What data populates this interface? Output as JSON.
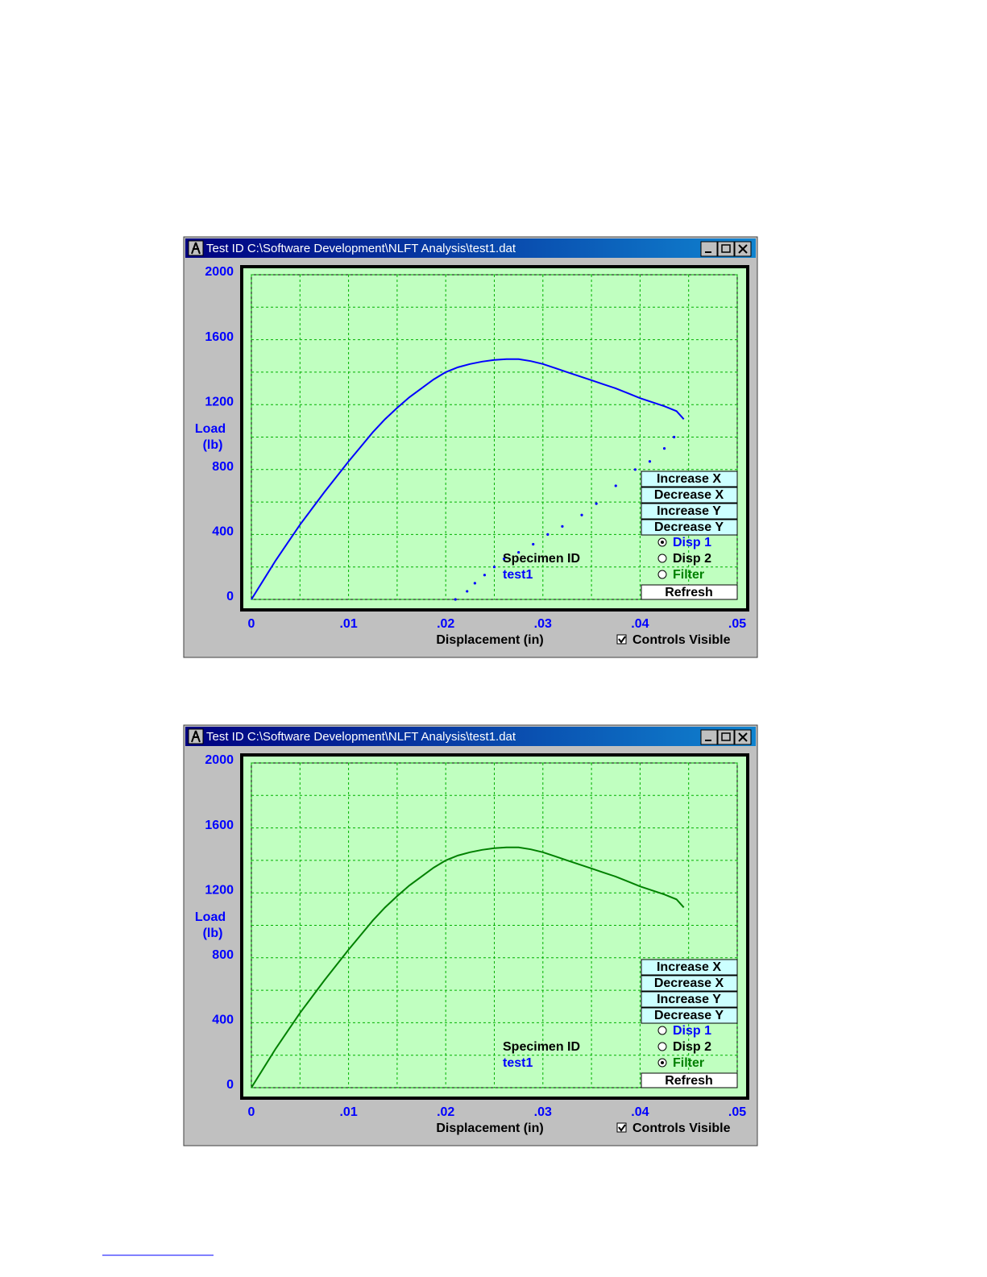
{
  "windows": [
    {
      "title": "Test ID C:\\Software Development\\NLFT Analysis\\test1.dat",
      "buttons": [
        "Increase X",
        "Decrease X",
        "Increase Y",
        "Decrease Y"
      ],
      "options": [
        "Disp 1",
        "Disp 2",
        "Filter"
      ],
      "selected": 0,
      "refresh": "Refresh",
      "specimen_label": "Specimen ID",
      "specimen_id": "test1",
      "controls_visible": "Controls Visible"
    },
    {
      "title": "Test ID C:\\Software Development\\NLFT Analysis\\test1.dat",
      "buttons": [
        "Increase X",
        "Decrease X",
        "Increase Y",
        "Decrease Y"
      ],
      "options": [
        "Disp 1",
        "Disp 2",
        "Filter"
      ],
      "selected": 2,
      "refresh": "Refresh",
      "specimen_label": "Specimen ID",
      "specimen_id": "test1",
      "controls_visible": "Controls Visible"
    }
  ],
  "chart_data": [
    {
      "type": "scatter",
      "x_label": "Displacement (in)",
      "y_label": [
        "Load",
        "(lb)"
      ],
      "xlim": [
        0,
        0.05
      ],
      "xticks": [
        0,
        {
          "value": 0.01,
          "label": ".01"
        },
        {
          "value": 0.02,
          "label": ".02"
        },
        {
          "value": 0.03,
          "label": ".03"
        },
        {
          "value": 0.04,
          "label": ".04"
        },
        {
          "value": 0.05,
          "label": ".05"
        }
      ],
      "ylim": [
        0,
        2000
      ],
      "yticks": [
        0,
        400,
        800,
        1200,
        1600,
        2000
      ],
      "grid": true,
      "series": [
        {
          "color": "#0000ff",
          "mode": "line",
          "x": [
            0,
            0.00125,
            0.0025,
            0.00375,
            0.005,
            0.00625,
            0.0075,
            0.00875,
            0.01,
            0.01125,
            0.0125,
            0.01375,
            0.015,
            0.01625,
            0.0175,
            0.01875,
            0.02,
            0.02125,
            0.0225,
            0.02375,
            0.025,
            0.02625,
            0.0275,
            0.02875,
            0.03,
            0.03125,
            0.0325,
            0.03375,
            0.035,
            0.03625,
            0.0375,
            0.03875,
            0.04,
            0.04125,
            0.0425,
            0.04375,
            0.0445
          ],
          "values": [
            0,
            120,
            240,
            350,
            460,
            560,
            660,
            755,
            850,
            940,
            1030,
            1110,
            1180,
            1245,
            1300,
            1355,
            1400,
            1430,
            1450,
            1465,
            1475,
            1480,
            1480,
            1468,
            1450,
            1425,
            1400,
            1375,
            1350,
            1325,
            1300,
            1270,
            1240,
            1215,
            1190,
            1160,
            1110
          ]
        },
        {
          "color": "#0000ff",
          "mode": "points",
          "x": [
            0.0435,
            0.0425,
            0.041,
            0.0395,
            0.0375,
            0.0355,
            0.034,
            0.032,
            0.0305,
            0.029,
            0.0275,
            0.026,
            0.025,
            0.024,
            0.023,
            0.0222,
            0.021
          ],
          "values": [
            1000,
            930,
            850,
            800,
            700,
            590,
            520,
            450,
            400,
            340,
            290,
            250,
            200,
            150,
            100,
            50,
            0
          ]
        }
      ]
    },
    {
      "type": "scatter",
      "x_label": "Displacement (in)",
      "y_label": [
        "Load",
        "(lb)"
      ],
      "xlim": [
        0,
        0.05
      ],
      "xticks": [
        0,
        {
          "value": 0.01,
          "label": ".01"
        },
        {
          "value": 0.02,
          "label": ".02"
        },
        {
          "value": 0.03,
          "label": ".03"
        },
        {
          "value": 0.04,
          "label": ".04"
        },
        {
          "value": 0.05,
          "label": ".05"
        }
      ],
      "ylim": [
        0,
        2000
      ],
      "yticks": [
        0,
        400,
        800,
        1200,
        1600,
        2000
      ],
      "grid": true,
      "series": [
        {
          "color": "#008000",
          "mode": "line",
          "x": [
            0,
            0.00125,
            0.0025,
            0.00375,
            0.005,
            0.00625,
            0.0075,
            0.00875,
            0.01,
            0.01125,
            0.0125,
            0.01375,
            0.015,
            0.01625,
            0.0175,
            0.01875,
            0.02,
            0.02125,
            0.0225,
            0.02375,
            0.025,
            0.02625,
            0.0275,
            0.02875,
            0.03,
            0.03125,
            0.0325,
            0.03375,
            0.035,
            0.03625,
            0.0375,
            0.03875,
            0.04,
            0.04125,
            0.0425,
            0.04375,
            0.0445
          ],
          "values": [
            0,
            120,
            240,
            350,
            460,
            560,
            660,
            755,
            850,
            940,
            1030,
            1110,
            1180,
            1245,
            1300,
            1355,
            1400,
            1430,
            1450,
            1465,
            1475,
            1480,
            1480,
            1468,
            1450,
            1425,
            1400,
            1375,
            1350,
            1325,
            1300,
            1270,
            1240,
            1215,
            1190,
            1160,
            1110
          ]
        }
      ]
    }
  ]
}
